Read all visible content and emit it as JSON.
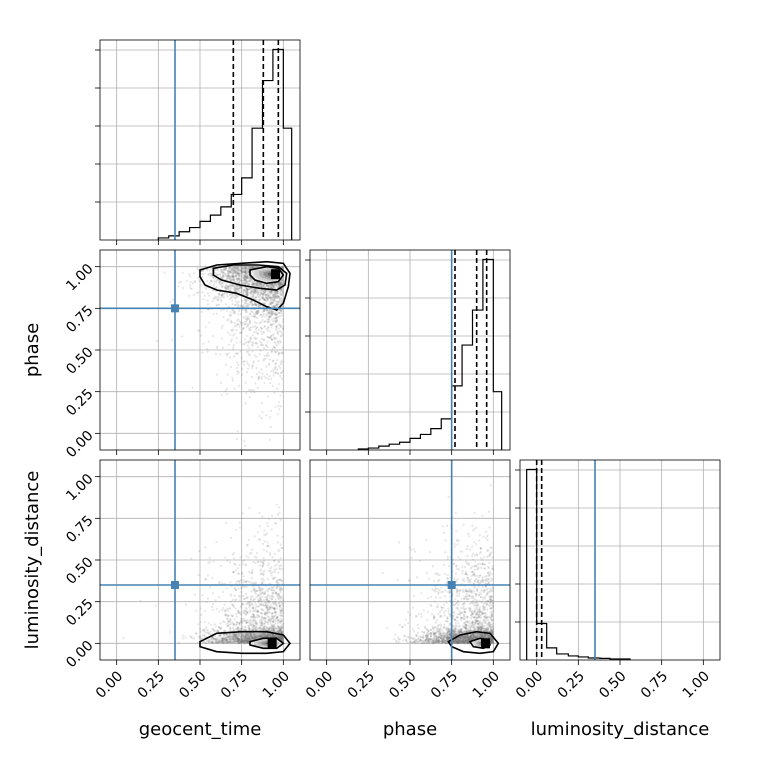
{
  "chart_data": {
    "type": "corner",
    "parameters": [
      {
        "key": "geocent_time",
        "label": "geocent_time",
        "truth": 0.35,
        "quantiles": [
          0.7,
          0.88,
          0.97
        ],
        "hist_edges": [
          0.25,
          0.3125,
          0.375,
          0.4375,
          0.5,
          0.5625,
          0.625,
          0.6875,
          0.75,
          0.8125,
          0.875,
          0.9375,
          1.0,
          1.05
        ],
        "hist_counts": [
          1,
          2,
          4,
          6,
          9,
          12,
          16,
          22,
          30,
          54,
          77,
          92,
          54
        ]
      },
      {
        "key": "phase",
        "label": "phase",
        "truth": 0.75,
        "quantiles": [
          0.77,
          0.9,
          0.96
        ],
        "hist_edges": [
          0.19,
          0.25,
          0.3125,
          0.375,
          0.4375,
          0.5,
          0.5625,
          0.625,
          0.6875,
          0.75,
          0.8125,
          0.875,
          0.9375,
          1.0,
          1.05
        ],
        "hist_counts": [
          0.5,
          1,
          2,
          3,
          4,
          6,
          8,
          11,
          16,
          33,
          54,
          72,
          98,
          30
        ]
      },
      {
        "key": "luminosity_distance",
        "label": "luminosity_distance",
        "truth": 0.35,
        "quantiles": [
          0.0,
          0.03
        ],
        "hist_edges": [
          -0.06,
          0.0,
          0.06,
          0.12,
          0.19,
          0.25,
          0.31,
          0.38,
          0.44,
          0.56
        ],
        "hist_counts": [
          94,
          18,
          6,
          3,
          2,
          1.5,
          1,
          0.8,
          0.5
        ]
      }
    ],
    "axis_range": [
      -0.1,
      1.1
    ],
    "ticks": [
      0.0,
      0.25,
      0.5,
      0.75,
      1.0
    ],
    "tick_labels": [
      "0.00",
      "0.25",
      "0.50",
      "0.75",
      "1.00"
    ],
    "pairs": [
      {
        "x": "geocent_time",
        "y": "phase",
        "contours": [
          [
            [
              0.5,
              0.98
            ],
            [
              0.6,
              1.01
            ],
            [
              0.75,
              1.02
            ],
            [
              0.9,
              1.03
            ],
            [
              1.0,
              1.02
            ],
            [
              1.04,
              0.96
            ],
            [
              1.03,
              0.88
            ],
            [
              1.0,
              0.78
            ],
            [
              0.96,
              0.74
            ],
            [
              0.9,
              0.76
            ],
            [
              0.82,
              0.8
            ],
            [
              0.72,
              0.84
            ],
            [
              0.6,
              0.86
            ],
            [
              0.53,
              0.89
            ],
            [
              0.5,
              0.94
            ]
          ],
          [
            [
              0.58,
              0.99
            ],
            [
              0.7,
              1.01
            ],
            [
              0.85,
              1.01
            ],
            [
              0.97,
              1.0
            ],
            [
              1.02,
              0.96
            ],
            [
              1.01,
              0.89
            ],
            [
              0.96,
              0.86
            ],
            [
              0.86,
              0.87
            ],
            [
              0.74,
              0.89
            ],
            [
              0.63,
              0.92
            ],
            [
              0.58,
              0.95
            ]
          ],
          [
            [
              0.8,
              0.98
            ],
            [
              0.9,
              1.0
            ],
            [
              0.97,
              0.99
            ],
            [
              1.0,
              0.95
            ],
            [
              0.97,
              0.91
            ],
            [
              0.9,
              0.9
            ],
            [
              0.83,
              0.92
            ],
            [
              0.8,
              0.95
            ]
          ]
        ],
        "density_peak": [
          0.95,
          0.955
        ]
      },
      {
        "x": "geocent_time",
        "y": "luminosity_distance",
        "contours": [
          [
            [
              0.5,
              0.01
            ],
            [
              0.6,
              0.06
            ],
            [
              0.75,
              0.07
            ],
            [
              0.9,
              0.07
            ],
            [
              1.0,
              0.05
            ],
            [
              1.04,
              0.0
            ],
            [
              1.0,
              -0.05
            ],
            [
              0.9,
              -0.06
            ],
            [
              0.75,
              -0.06
            ],
            [
              0.6,
              -0.05
            ],
            [
              0.5,
              -0.02
            ]
          ],
          [
            [
              0.8,
              0.01
            ],
            [
              0.88,
              0.03
            ],
            [
              0.96,
              0.03
            ],
            [
              1.0,
              0.0
            ],
            [
              0.96,
              -0.03
            ],
            [
              0.88,
              -0.03
            ],
            [
              0.8,
              -0.01
            ]
          ]
        ],
        "density_peak": [
          0.93,
          0.0
        ]
      },
      {
        "x": "phase",
        "y": "luminosity_distance",
        "contours": [
          [
            [
              0.73,
              0.01
            ],
            [
              0.8,
              0.05
            ],
            [
              0.9,
              0.07
            ],
            [
              0.98,
              0.06
            ],
            [
              1.03,
              0.0
            ],
            [
              1.0,
              -0.05
            ],
            [
              0.92,
              -0.06
            ],
            [
              0.82,
              -0.05
            ],
            [
              0.75,
              -0.02
            ]
          ],
          [
            [
              0.86,
              0.01
            ],
            [
              0.92,
              0.03
            ],
            [
              0.97,
              0.02
            ],
            [
              0.98,
              -0.01
            ],
            [
              0.94,
              -0.03
            ],
            [
              0.88,
              -0.02
            ]
          ]
        ],
        "density_peak": [
          0.95,
          0.0
        ]
      }
    ],
    "colors": {
      "truth": "#4682b4",
      "contour": "#000000",
      "grid": "#b0b0b0",
      "samples": "#777777"
    }
  }
}
